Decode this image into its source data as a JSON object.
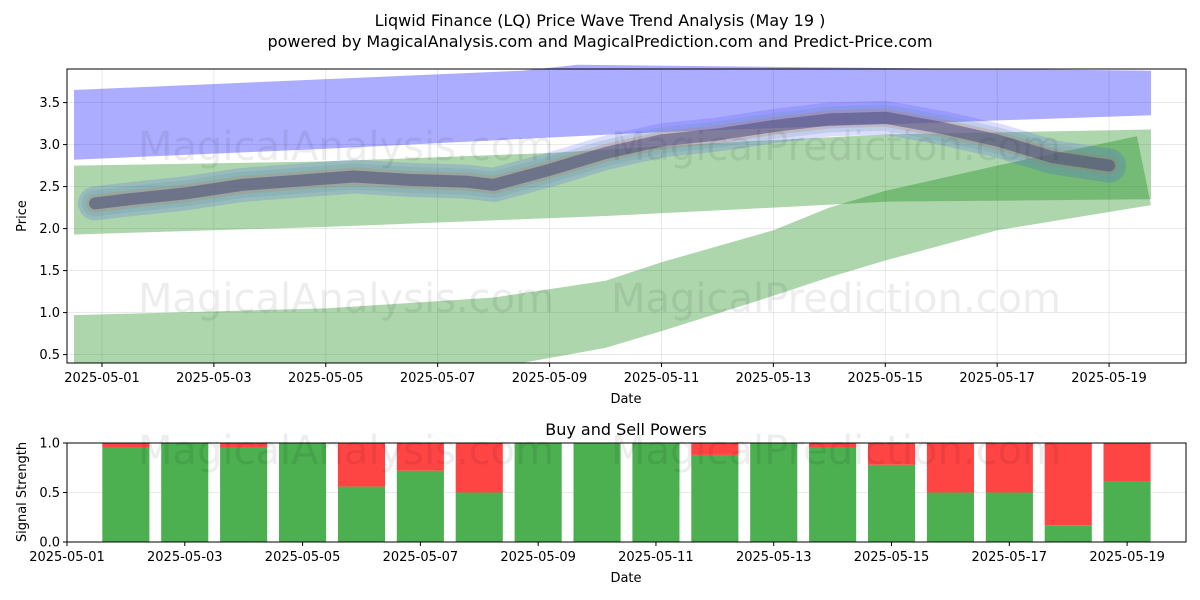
{
  "title": "Liqwid Finance (LQ) Price Wave Trend Analysis (May 19 )",
  "subtitle": "powered by MagicalAnalysis.com and MagicalPrediction.com and Predict-Price.com",
  "watermarks": [
    "MagicalAnalysis.com",
    "MagicalPrediction.com"
  ],
  "colors": {
    "wave_band_blue": "#0000ff",
    "wave_band_green": "#008000",
    "price_line": "#4b4b7a",
    "buy": "#4caf50",
    "sell": "#ff4444"
  },
  "chart_data": [
    {
      "type": "area",
      "title": "",
      "xlabel": "Date",
      "ylabel": "Price",
      "ylim": [
        0.4,
        3.9
      ],
      "xlim": [
        "2025-04-30T09:00",
        "2025-05-20T09:00"
      ],
      "x_ticks": [
        "2025-05-01",
        "2025-05-03",
        "2025-05-05",
        "2025-05-07",
        "2025-05-09",
        "2025-05-11",
        "2025-05-13",
        "2025-05-15",
        "2025-05-17",
        "2025-05-19"
      ],
      "y_ticks": [
        0.5,
        1.0,
        1.5,
        2.0,
        2.5,
        3.0,
        3.5
      ],
      "grid": true,
      "series": [
        {
          "color": "blue",
          "upper": [
            [
              "2025-04-30T12:00",
              3.65
            ],
            [
              "2025-05-08T12:00",
              3.88
            ],
            [
              "2025-05-09T12:00",
              3.95
            ],
            [
              "2025-05-19T18:00",
              3.88
            ]
          ],
          "lower": [
            [
              "2025-04-30T12:00",
              2.82
            ],
            [
              "2025-05-05T00:00",
              2.95
            ],
            [
              "2025-05-11T00:00",
              3.15
            ],
            [
              "2025-05-19T18:00",
              3.35
            ]
          ]
        },
        {
          "color": "green",
          "upper": [
            [
              "2025-04-30T12:00",
              2.75
            ],
            [
              "2025-05-05T00:00",
              2.8
            ],
            [
              "2025-05-09T00:00",
              2.9
            ],
            [
              "2025-05-12T00:00",
              3.02
            ],
            [
              "2025-05-15T00:00",
              3.12
            ],
            [
              "2025-05-19T18:00",
              3.18
            ]
          ],
          "lower": [
            [
              "2025-04-30T12:00",
              1.93
            ],
            [
              "2025-05-05T00:00",
              2.02
            ],
            [
              "2025-05-10T00:00",
              2.15
            ],
            [
              "2025-05-13T00:00",
              2.25
            ],
            [
              "2025-05-15T00:00",
              2.32
            ],
            [
              "2025-05-19T18:00",
              2.35
            ]
          ]
        },
        {
          "color": "green",
          "upper": [
            [
              "2025-04-30T12:00",
              0.97
            ],
            [
              "2025-05-05T00:00",
              1.05
            ],
            [
              "2025-05-08T00:00",
              1.18
            ],
            [
              "2025-05-10T00:00",
              1.38
            ],
            [
              "2025-05-11T00:00",
              1.6
            ],
            [
              "2025-05-13T00:00",
              1.98
            ],
            [
              "2025-05-14T00:00",
              2.25
            ],
            [
              "2025-05-15T00:00",
              2.45
            ],
            [
              "2025-05-17T00:00",
              2.75
            ],
            [
              "2025-05-19T12:00",
              3.1
            ]
          ],
          "lower": [
            [
              "2025-04-30T12:00",
              0.4
            ],
            [
              "2025-05-08T12:00",
              0.4
            ],
            [
              "2025-05-10T00:00",
              0.58
            ],
            [
              "2025-05-11T00:00",
              0.78
            ],
            [
              "2025-05-13T00:00",
              1.2
            ],
            [
              "2025-05-14T00:00",
              1.42
            ],
            [
              "2025-05-15T00:00",
              1.62
            ],
            [
              "2025-05-17T00:00",
              1.98
            ],
            [
              "2025-05-19T18:00",
              2.28
            ]
          ]
        }
      ],
      "price_line": [
        [
          "2025-04-30T21:00",
          2.3
        ],
        [
          "2025-05-01T12:00",
          2.35
        ],
        [
          "2025-05-02T12:00",
          2.42
        ],
        [
          "2025-05-03T12:00",
          2.52
        ],
        [
          "2025-05-04T12:00",
          2.57
        ],
        [
          "2025-05-05T12:00",
          2.62
        ],
        [
          "2025-05-06T12:00",
          2.58
        ],
        [
          "2025-05-07T12:00",
          2.56
        ],
        [
          "2025-05-08T00:00",
          2.52
        ],
        [
          "2025-05-09T00:00",
          2.7
        ],
        [
          "2025-05-10T00:00",
          2.9
        ],
        [
          "2025-05-11T00:00",
          3.05
        ],
        [
          "2025-05-12T00:00",
          3.12
        ],
        [
          "2025-05-13T00:00",
          3.22
        ],
        [
          "2025-05-14T00:00",
          3.3
        ],
        [
          "2025-05-15T00:00",
          3.32
        ],
        [
          "2025-05-16T00:00",
          3.2
        ],
        [
          "2025-05-17T00:00",
          3.05
        ],
        [
          "2025-05-18T00:00",
          2.85
        ],
        [
          "2025-05-19T00:00",
          2.75
        ]
      ]
    },
    {
      "type": "bar",
      "title": "Buy and Sell Powers",
      "xlabel": "Date",
      "ylabel": "Signal Strength",
      "ylim": [
        0,
        1.0
      ],
      "xlim": [
        "2025-05-01T00:00",
        "2025-05-20T00:00"
      ],
      "x_ticks": [
        "2025-05-01",
        "2025-05-03",
        "2025-05-05",
        "2025-05-07",
        "2025-05-09",
        "2025-05-11",
        "2025-05-13",
        "2025-05-15",
        "2025-05-17",
        "2025-05-19"
      ],
      "y_ticks": [
        0.0,
        0.5,
        1.0
      ],
      "categories": [
        "2025-05-02",
        "2025-05-03",
        "2025-05-04",
        "2025-05-05",
        "2025-05-06",
        "2025-05-07",
        "2025-05-08",
        "2025-05-09",
        "2025-05-10",
        "2025-05-11",
        "2025-05-12",
        "2025-05-13",
        "2025-05-14",
        "2025-05-15",
        "2025-05-16",
        "2025-05-17",
        "2025-05-18",
        "2025-05-19"
      ],
      "series": [
        {
          "color": "buy",
          "values": [
            0.95,
            1.0,
            0.95,
            1.0,
            0.56,
            0.72,
            0.5,
            1.0,
            1.0,
            1.0,
            0.88,
            1.0,
            0.95,
            0.78,
            0.5,
            0.5,
            0.17,
            0.61
          ]
        },
        {
          "color": "sell",
          "values": [
            0.05,
            0.0,
            0.05,
            0.0,
            0.44,
            0.28,
            0.5,
            0.0,
            0.0,
            0.0,
            0.12,
            0.0,
            0.05,
            0.22,
            0.5,
            0.5,
            0.83,
            0.39
          ]
        }
      ]
    }
  ]
}
